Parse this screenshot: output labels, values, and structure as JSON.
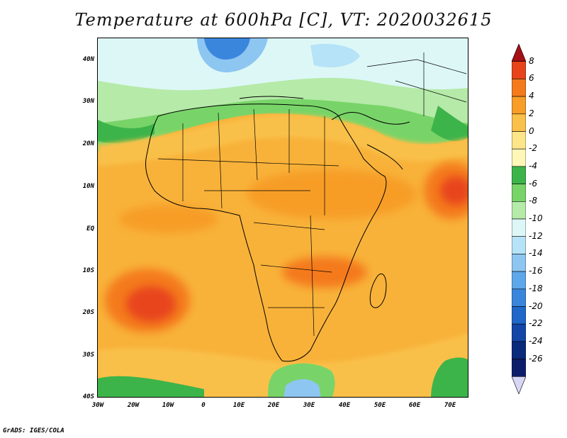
{
  "title": "Temperature at 600hPa [C], VT: 2020032615",
  "footer": "GrADS: IGES/COLA",
  "lat_labels": [
    "40N",
    "30N",
    "20N",
    "10N",
    "EQ",
    "10S",
    "20S",
    "30S",
    "40S"
  ],
  "lon_labels": [
    "30W",
    "20W",
    "10W",
    "0",
    "10E",
    "20E",
    "30E",
    "40E",
    "50E",
    "60E",
    "70E"
  ],
  "colorbar": {
    "levels": [
      "8",
      "6",
      "4",
      "2",
      "0",
      "-2",
      "-4",
      "-6",
      "-8",
      "-10",
      "-12",
      "-14",
      "-16",
      "-18",
      "-20",
      "-22",
      "-24",
      "-26"
    ],
    "colors": [
      "#a50f15",
      "#e8441b",
      "#f47a1c",
      "#f79d28",
      "#f9c04a",
      "#fde68a",
      "#fef7b8",
      "#3db44a",
      "#78d468",
      "#b5eaa8",
      "#ddf7f7",
      "#b6e3f7",
      "#8ec6f2",
      "#5ea7ea",
      "#3b86dd",
      "#1f67c8",
      "#1346a7",
      "#0a2a7c",
      "#0c1e6a",
      "#d8d6f5"
    ]
  },
  "colors": {
    "hot_core": "#e8441b",
    "warm": "#f79d28",
    "mild": "#f9c04a",
    "cool_green": "#3db44a",
    "cold_blue": "#3b86dd"
  }
}
